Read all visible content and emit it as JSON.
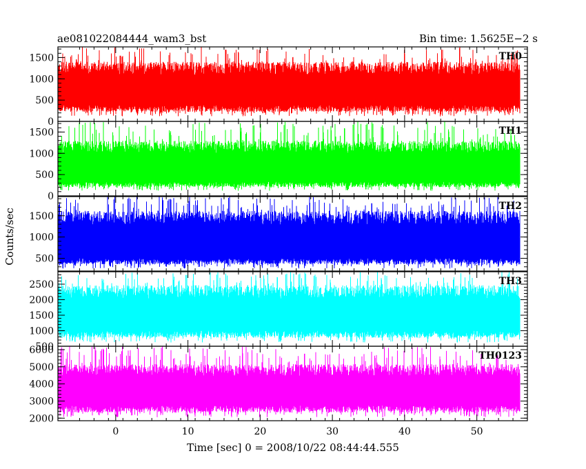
{
  "header": {
    "title": "ae081022084444_wam3_bst",
    "bin_time": "Bin time: 1.5625E−2 s"
  },
  "chart_data": {
    "type": "line",
    "ylabel": "Counts/sec",
    "xlabel": "Time [sec] 0 = 2008/10/22 08:44:44.555",
    "xlim": [
      -8,
      57
    ],
    "x_ticks": [
      0,
      10,
      20,
      30,
      40,
      50
    ],
    "x_data_range": [
      -7.9,
      56.0
    ],
    "grid": false,
    "panels": [
      {
        "name": "TH0",
        "color": "#ff0000",
        "ylim": [
          0,
          1750
        ],
        "y_ticks": [
          0,
          500,
          1000,
          1500
        ],
        "series_envelope": {
          "floor": 380,
          "low": 120,
          "high": 1250,
          "peak": 1750
        }
      },
      {
        "name": "TH1",
        "color": "#00ff00",
        "ylim": [
          0,
          1750
        ],
        "y_ticks": [
          0,
          500,
          1000,
          1500
        ],
        "series_envelope": {
          "floor": 330,
          "low": 120,
          "high": 1150,
          "peak": 1750
        }
      },
      {
        "name": "TH2",
        "color": "#0000ff",
        "ylim": [
          200,
          1950
        ],
        "y_ticks": [
          500,
          1000,
          1500
        ],
        "series_envelope": {
          "floor": 500,
          "low": 260,
          "high": 1450,
          "peak": 1950
        }
      },
      {
        "name": "TH3",
        "color": "#00ffff",
        "ylim": [
          500,
          2900
        ],
        "y_ticks": [
          500,
          1000,
          1500,
          2000,
          2500
        ],
        "series_envelope": {
          "floor": 1000,
          "low": 620,
          "high": 2250,
          "peak": 2900
        }
      },
      {
        "name": "TH0123",
        "color": "#ff00ff",
        "ylim": [
          1850,
          6200
        ],
        "y_ticks": [
          2000,
          3000,
          4000,
          5000,
          6000
        ],
        "series_envelope": {
          "floor": 2750,
          "low": 2050,
          "high": 4800,
          "peak": 6200
        }
      }
    ]
  }
}
